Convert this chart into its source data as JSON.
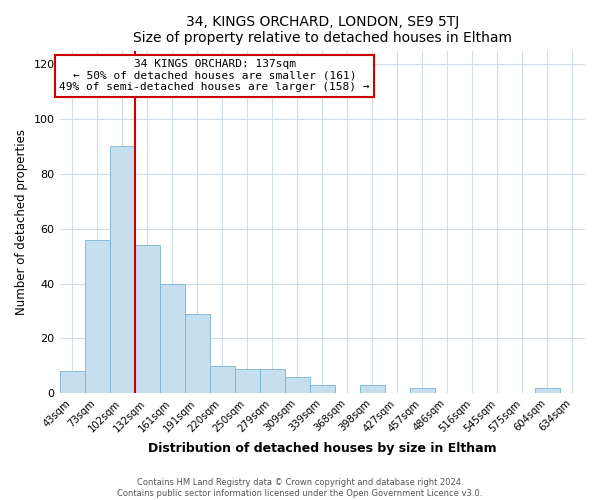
{
  "title": "34, KINGS ORCHARD, LONDON, SE9 5TJ",
  "subtitle": "Size of property relative to detached houses in Eltham",
  "xlabel": "Distribution of detached houses by size in Eltham",
  "ylabel": "Number of detached properties",
  "bar_labels": [
    "43sqm",
    "73sqm",
    "102sqm",
    "132sqm",
    "161sqm",
    "191sqm",
    "220sqm",
    "250sqm",
    "279sqm",
    "309sqm",
    "339sqm",
    "368sqm",
    "398sqm",
    "427sqm",
    "457sqm",
    "486sqm",
    "516sqm",
    "545sqm",
    "575sqm",
    "604sqm",
    "634sqm"
  ],
  "bar_values": [
    8,
    56,
    90,
    54,
    40,
    29,
    10,
    9,
    9,
    6,
    3,
    0,
    3,
    0,
    2,
    0,
    0,
    0,
    0,
    2,
    0
  ],
  "bar_color": "#c6dff0",
  "bar_edge_color": "#7ab4d4",
  "property_line_x": 3.0,
  "annotation_text1": "34 KINGS ORCHARD: 137sqm",
  "annotation_text2": "← 50% of detached houses are smaller (161)",
  "annotation_text3": "49% of semi-detached houses are larger (158) →",
  "box_facecolor": "#ffffff",
  "box_edgecolor": "#cc0000",
  "line_color": "#cc0000",
  "ylim": [
    0,
    125
  ],
  "yticks": [
    0,
    20,
    40,
    60,
    80,
    100,
    120
  ],
  "figure_bg": "#ffffff",
  "plot_bg": "#ffffff",
  "grid_color": "#d0dce8",
  "footer1": "Contains HM Land Registry data © Crown copyright and database right 2024.",
  "footer2": "Contains public sector information licensed under the Open Government Licence v3.0."
}
